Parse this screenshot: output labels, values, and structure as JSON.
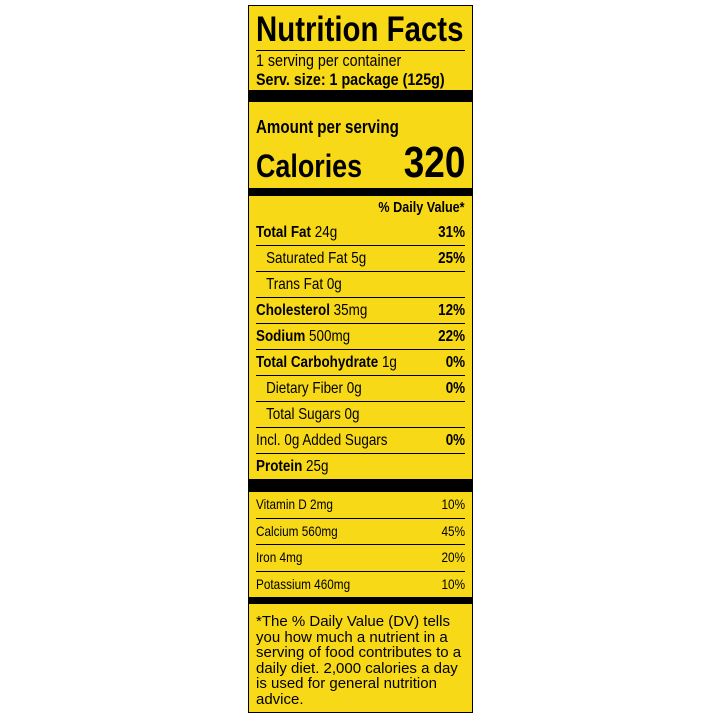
{
  "title": "Nutrition Facts",
  "servings": "1 serving  per container",
  "serving_size": "Serv. size: 1 package (125g)",
  "amount_per_serving": "Amount per serving",
  "calories_label": "Calories",
  "calories_value": "320",
  "daily_value_header": "% Daily Value*",
  "nutrients": [
    {
      "name": "Total Fat",
      "amount": "24g",
      "dv": "31%"
    },
    {
      "name": "Saturated Fat 5g",
      "dv": "25%"
    },
    {
      "name": "Trans Fat 0g"
    },
    {
      "name": "Cholesterol",
      "amount": "35mg",
      "dv": "12%"
    },
    {
      "name": "Sodium",
      "amount": "500mg",
      "dv": "22%"
    },
    {
      "name": "Total Carbohydrate",
      "amount": "1g",
      "dv": "0%"
    },
    {
      "name": "Dietary Fiber 0g",
      "dv": "0%"
    },
    {
      "name": "Total Sugars 0g"
    },
    {
      "name": "Incl. 0g Added Sugars",
      "dv": "0%"
    },
    {
      "name": "Protein",
      "amount": "25g"
    }
  ],
  "vitamins": [
    {
      "name": "Vitamin D 2mg",
      "dv": "10%"
    },
    {
      "name": "Calcium 560mg",
      "dv": "45%"
    },
    {
      "name": "Iron 4mg",
      "dv": "20%"
    },
    {
      "name": "Potassium 460mg",
      "dv": "10%"
    }
  ],
  "footnote": "*The % Daily Value (DV) tells you how much a nutrient in a serving of food contributes to a daily diet. 2,000 calories a day is used for general nutrition advice."
}
